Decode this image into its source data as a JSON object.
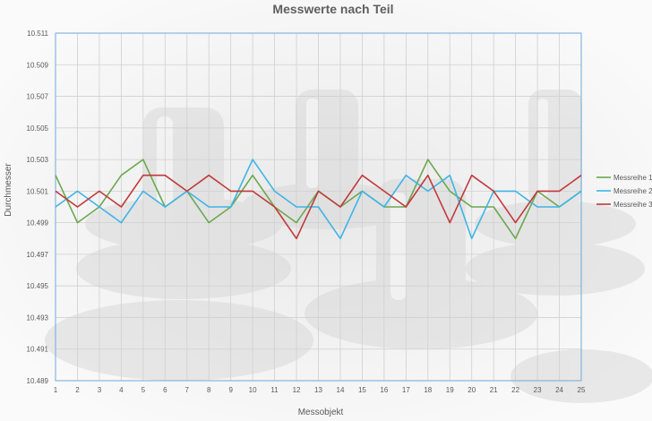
{
  "chart_data": {
    "type": "line",
    "title": "Messwerte nach Teil",
    "xlabel": "Messobjekt",
    "ylabel": "Durchmesser",
    "x": [
      1,
      2,
      3,
      4,
      5,
      6,
      7,
      8,
      9,
      10,
      11,
      12,
      13,
      14,
      15,
      16,
      17,
      18,
      19,
      20,
      21,
      22,
      23,
      24,
      25
    ],
    "ylim": [
      10.489,
      10.511
    ],
    "yticks": [
      "10.489",
      "10.491",
      "10.493",
      "10.495",
      "10.497",
      "10.499",
      "10.501",
      "10.503",
      "10.505",
      "10.507",
      "10.509",
      "10.511"
    ],
    "grid": true,
    "legend_position": "right",
    "series": [
      {
        "name": "Messreihe 1",
        "color": "#6aa84f",
        "values": [
          10.502,
          10.499,
          10.5,
          10.502,
          10.503,
          10.5,
          10.501,
          10.499,
          10.5,
          10.502,
          10.5,
          10.499,
          10.501,
          10.5,
          10.501,
          10.5,
          10.5,
          10.503,
          10.501,
          10.5,
          10.5,
          10.498,
          10.501,
          10.5,
          10.501
        ]
      },
      {
        "name": "Messreihe 2",
        "color": "#3eb4e6",
        "values": [
          10.5,
          10.501,
          10.5,
          10.499,
          10.501,
          10.5,
          10.501,
          10.5,
          10.5,
          10.503,
          10.501,
          10.5,
          10.5,
          10.498,
          10.501,
          10.5,
          10.502,
          10.501,
          10.502,
          10.498,
          10.501,
          10.501,
          10.5,
          10.5,
          10.501
        ]
      },
      {
        "name": "Messreihe 3",
        "color": "#c0393b",
        "values": [
          10.501,
          10.5,
          10.501,
          10.5,
          10.502,
          10.502,
          10.501,
          10.502,
          10.501,
          10.501,
          10.5,
          10.498,
          10.501,
          10.5,
          10.502,
          10.501,
          10.5,
          10.502,
          10.499,
          10.502,
          10.501,
          10.499,
          10.501,
          10.501,
          10.502
        ]
      }
    ]
  }
}
